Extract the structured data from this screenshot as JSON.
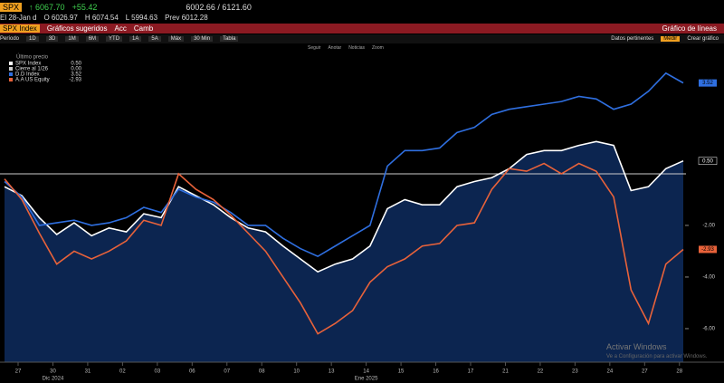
{
  "ui": {
    "ticker": "SPX",
    "last": "↑ 6067.70",
    "change": "+55.42",
    "range": "6002.66 / 6121.60",
    "date": "El 28-Jan d",
    "open": "O 6026.97",
    "high": "H 6074.54",
    "low": "L 5994.63",
    "prev": "Prev 6012.28",
    "menu": [
      "SPX Index",
      "Gráficos sugeridos",
      "Acc",
      "Camb",
      "Gráfico de líneas"
    ],
    "toolbar": [
      "Período",
      "1D",
      "3D",
      "1M",
      "6M",
      "YTD",
      "1A",
      "5A",
      "Máx",
      "30 Min",
      "Tabla"
    ],
    "toolbar_right": [
      "Datos pertinentes",
      "Medir",
      "Crear gráfico"
    ],
    "tools": [
      "Seguir",
      "Anotar",
      "Noticias",
      "Zoom"
    ],
    "watermark": [
      "Activar Windows",
      "Ve a Configuración para activar Windows."
    ]
  },
  "chart_data": {
    "type": "line",
    "legend_title": "Último precio",
    "categories": [
      "27",
      null,
      "30",
      null,
      "31",
      null,
      "02",
      null,
      "03",
      null,
      "06",
      null,
      "07",
      null,
      "08",
      null,
      "10",
      null,
      "13",
      null,
      "14",
      null,
      "15",
      null,
      "16",
      null,
      "17",
      null,
      "21",
      null,
      "22",
      null,
      "23",
      null,
      "24",
      null,
      "27",
      null,
      "28",
      null
    ],
    "period_labels": [
      {
        "index": 2,
        "label": "Dic 2024"
      },
      {
        "index": 20,
        "label": "Ene 2025"
      }
    ],
    "series": [
      {
        "name": "SPX Index",
        "color": "#ffffff",
        "fill": "#0c2550",
        "last_label": "0.50",
        "values": [
          -0.5,
          -0.85,
          -1.7,
          -2.35,
          -1.9,
          -2.4,
          -2.1,
          -2.25,
          -1.55,
          -1.7,
          -0.5,
          -0.85,
          -1.2,
          -1.7,
          -2.1,
          -2.25,
          -2.8,
          -3.3,
          -3.8,
          -3.5,
          -3.3,
          -2.8,
          -1.35,
          -1.0,
          -1.2,
          -1.2,
          -0.5,
          -0.3,
          -0.15,
          0.2,
          0.75,
          0.9,
          0.9,
          1.1,
          1.25,
          1.1,
          -0.65,
          -0.5,
          0.2,
          0.5
        ]
      },
      {
        "name": "D.D Index",
        "color": "#2f6fe0",
        "last_label": "3.52",
        "values": [
          -0.3,
          -0.9,
          -2.0,
          -1.9,
          -1.8,
          -2.0,
          -1.9,
          -1.7,
          -1.3,
          -1.5,
          -0.6,
          -0.9,
          -1.1,
          -1.5,
          -2.0,
          -2.0,
          -2.5,
          -2.9,
          -3.2,
          -2.8,
          -2.4,
          -2.0,
          0.3,
          0.9,
          0.9,
          1.0,
          1.6,
          1.8,
          2.3,
          2.5,
          2.6,
          2.7,
          2.8,
          3.0,
          2.9,
          2.5,
          2.7,
          3.2,
          3.9,
          3.52
        ]
      },
      {
        "name": "A.A US Equity",
        "color": "#e8623a",
        "last_label": "-2.93",
        "values": [
          -0.2,
          -1.0,
          -2.3,
          -3.5,
          -3.0,
          -3.3,
          -3.0,
          -2.6,
          -1.8,
          -2.0,
          0.0,
          -0.6,
          -1.0,
          -1.6,
          -2.3,
          -3.0,
          -4.0,
          -5.0,
          -6.2,
          -5.8,
          -5.3,
          -4.2,
          -3.6,
          -3.3,
          -2.8,
          -2.7,
          -2.0,
          -1.9,
          -0.6,
          0.2,
          0.1,
          0.4,
          0.0,
          0.4,
          0.1,
          -0.9,
          -4.5,
          -5.8,
          -3.5,
          -2.93
        ]
      }
    ],
    "reference_line": {
      "name": "Cierre al 1/26",
      "value": 0,
      "label": "0.00",
      "color": "#cccccc"
    },
    "ylim": [
      -7.3,
      4.7
    ],
    "yticks": [
      {
        "value": -6,
        "label": "-6.00"
      },
      {
        "value": -4,
        "label": "-4.00"
      },
      {
        "value": -2,
        "label": "-2.00"
      }
    ],
    "grid": false
  }
}
